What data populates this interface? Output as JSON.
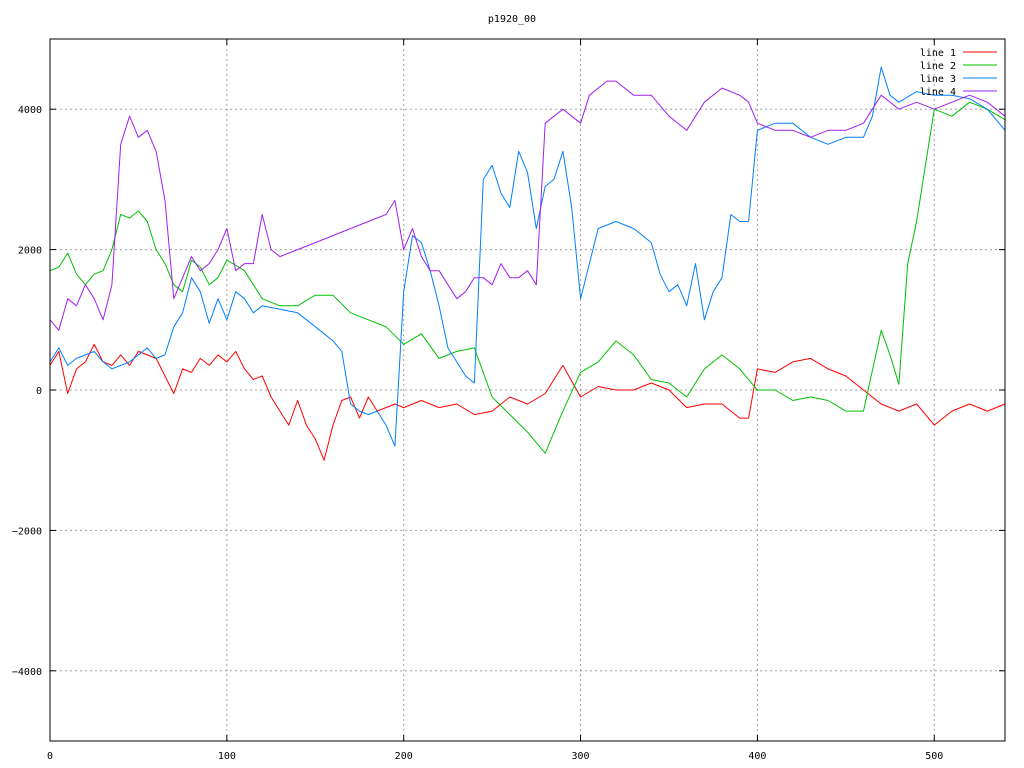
{
  "chart_data": {
    "type": "line",
    "title": "p1920_00",
    "xlabel": "",
    "ylabel": "",
    "xlim": [
      0,
      540
    ],
    "ylim": [
      -5000,
      5000
    ],
    "xticks": [
      0,
      100,
      200,
      300,
      400,
      500
    ],
    "yticks": [
      -4000,
      -2000,
      0,
      2000,
      4000
    ],
    "grid": true,
    "legend_position": "top-right",
    "series": [
      {
        "name": "line 1",
        "color": "#ff0000",
        "x": [
          0,
          5,
          10,
          15,
          20,
          25,
          30,
          35,
          40,
          45,
          50,
          55,
          60,
          65,
          70,
          75,
          80,
          85,
          90,
          95,
          100,
          105,
          110,
          115,
          120,
          125,
          130,
          135,
          140,
          145,
          150,
          155,
          160,
          165,
          170,
          175,
          180,
          185,
          190,
          195,
          200,
          210,
          220,
          230,
          240,
          250,
          260,
          270,
          280,
          290,
          300,
          310,
          320,
          330,
          340,
          350,
          360,
          370,
          380,
          390,
          395,
          400,
          410,
          420,
          430,
          440,
          450,
          460,
          470,
          480,
          490,
          500,
          510,
          520,
          530,
          540
        ],
        "y": [
          350,
          550,
          -50,
          300,
          400,
          650,
          400,
          350,
          500,
          350,
          550,
          500,
          450,
          200,
          -50,
          300,
          250,
          450,
          350,
          500,
          400,
          550,
          300,
          150,
          200,
          -100,
          -300,
          -500,
          -150,
          -500,
          -700,
          -1000,
          -500,
          -150,
          -100,
          -400,
          -100,
          -300,
          -250,
          -200,
          -250,
          -150,
          -250,
          -200,
          -350,
          -300,
          -100,
          -200,
          -50,
          350,
          -100,
          50,
          0,
          0,
          100,
          0,
          -250,
          -200,
          -200,
          -400,
          -400,
          300,
          250,
          400,
          450,
          300,
          200,
          0,
          -200,
          -300,
          -200,
          -500,
          -300,
          -200,
          -300,
          -200
        ]
      },
      {
        "name": "line 2",
        "color": "#00c000",
        "x": [
          0,
          5,
          10,
          15,
          20,
          25,
          30,
          35,
          40,
          45,
          50,
          55,
          60,
          65,
          70,
          75,
          80,
          85,
          90,
          95,
          100,
          110,
          120,
          130,
          140,
          150,
          160,
          170,
          180,
          190,
          200,
          210,
          220,
          230,
          240,
          250,
          260,
          270,
          280,
          290,
          300,
          310,
          320,
          330,
          340,
          350,
          360,
          370,
          380,
          390,
          400,
          410,
          420,
          430,
          440,
          450,
          460,
          470,
          475,
          480,
          485,
          490,
          495,
          500,
          510,
          520,
          530,
          540
        ],
        "y": [
          1700,
          1750,
          1950,
          1650,
          1500,
          1650,
          1700,
          2000,
          2500,
          2450,
          2550,
          2400,
          2000,
          1800,
          1500,
          1400,
          1850,
          1750,
          1500,
          1600,
          1850,
          1700,
          1300,
          1200,
          1200,
          1350,
          1350,
          1100,
          1000,
          900,
          650,
          800,
          450,
          550,
          600,
          -100,
          -350,
          -600,
          -900,
          -300,
          250,
          400,
          700,
          500,
          150,
          100,
          -100,
          300,
          500,
          300,
          0,
          0,
          -150,
          -100,
          -150,
          -300,
          -300,
          850,
          500,
          80,
          1800,
          2400,
          3200,
          4000,
          3900,
          4100,
          4000,
          3850
        ]
      },
      {
        "name": "line 3",
        "color": "#0080ff",
        "x": [
          0,
          5,
          10,
          15,
          20,
          25,
          30,
          35,
          40,
          45,
          50,
          55,
          60,
          65,
          70,
          75,
          80,
          85,
          90,
          95,
          100,
          105,
          110,
          115,
          120,
          130,
          140,
          150,
          160,
          165,
          170,
          175,
          180,
          185,
          190,
          195,
          200,
          205,
          210,
          215,
          220,
          225,
          230,
          235,
          240,
          245,
          250,
          255,
          260,
          265,
          270,
          275,
          280,
          285,
          290,
          295,
          300,
          310,
          320,
          330,
          340,
          345,
          350,
          355,
          360,
          365,
          370,
          375,
          380,
          385,
          390,
          395,
          400,
          410,
          420,
          430,
          440,
          450,
          460,
          465,
          470,
          475,
          480,
          490,
          500,
          510,
          520,
          530,
          540
        ],
        "y": [
          400,
          600,
          350,
          450,
          500,
          550,
          400,
          300,
          350,
          400,
          500,
          600,
          450,
          500,
          900,
          1100,
          1600,
          1400,
          950,
          1300,
          1000,
          1400,
          1300,
          1100,
          1200,
          1150,
          1100,
          900,
          700,
          550,
          -200,
          -300,
          -350,
          -300,
          -500,
          -800,
          1400,
          2200,
          2100,
          1700,
          1200,
          600,
          400,
          200,
          100,
          3000,
          3200,
          2800,
          2600,
          3400,
          3100,
          2300,
          2900,
          3000,
          3400,
          2600,
          1300,
          2300,
          2400,
          2300,
          2100,
          1650,
          1400,
          1500,
          1200,
          1800,
          1000,
          1400,
          1600,
          2500,
          2400,
          2400,
          3700,
          3800,
          3800,
          3600,
          3500,
          3600,
          3600,
          3900,
          4600,
          4200,
          4100,
          4250,
          4200,
          4200,
          4150,
          4000,
          3700
        ]
      },
      {
        "name": "line 4",
        "color": "#a020f0",
        "x": [
          0,
          5,
          10,
          15,
          20,
          25,
          30,
          35,
          40,
          45,
          50,
          55,
          60,
          65,
          70,
          75,
          80,
          85,
          90,
          95,
          100,
          105,
          110,
          115,
          120,
          125,
          130,
          140,
          150,
          160,
          170,
          180,
          190,
          195,
          200,
          205,
          210,
          215,
          220,
          225,
          230,
          235,
          240,
          245,
          250,
          255,
          260,
          265,
          270,
          275,
          280,
          285,
          290,
          295,
          300,
          305,
          310,
          315,
          320,
          330,
          340,
          350,
          360,
          370,
          380,
          390,
          395,
          400,
          410,
          420,
          430,
          440,
          450,
          460,
          470,
          480,
          490,
          500,
          510,
          520,
          530,
          540
        ],
        "y": [
          1000,
          850,
          1300,
          1200,
          1500,
          1300,
          1000,
          1500,
          3500,
          3900,
          3600,
          3700,
          3400,
          2700,
          1300,
          1600,
          1900,
          1700,
          1800,
          2000,
          2300,
          1700,
          1800,
          1800,
          2500,
          2000,
          1900,
          2000,
          2100,
          2200,
          2300,
          2400,
          2500,
          2700,
          2000,
          2300,
          1900,
          1700,
          1700,
          1500,
          1300,
          1400,
          1600,
          1600,
          1500,
          1800,
          1600,
          1600,
          1700,
          1500,
          3800,
          3900,
          4000,
          3900,
          3800,
          4200,
          4300,
          4400,
          4400,
          4200,
          4200,
          3900,
          3700,
          4100,
          4300,
          4200,
          4100,
          3800,
          3700,
          3700,
          3600,
          3700,
          3700,
          3800,
          4200,
          4000,
          4100,
          4000,
          4100,
          4200,
          4100,
          3900
        ]
      }
    ]
  }
}
